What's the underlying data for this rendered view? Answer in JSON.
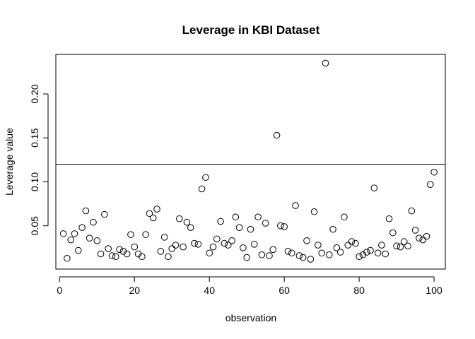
{
  "chart_data": {
    "type": "scatter",
    "title": "Leverage in KBI Dataset",
    "xlabel": "observation",
    "ylabel": "Leverage value",
    "xlim": [
      -1,
      103
    ],
    "ylim": [
      0.00075,
      0.245
    ],
    "x_ticks": [
      0,
      20,
      40,
      60,
      80,
      100
    ],
    "x_tick_labels": [
      "0",
      "20",
      "40",
      "60",
      "80",
      "100"
    ],
    "y_ticks": [
      0.05,
      0.1,
      0.15,
      0.2
    ],
    "y_tick_labels": [
      "0.05",
      "0.10",
      "0.15",
      "0.20"
    ],
    "grid": false,
    "reference_line": {
      "orientation": "horizontal",
      "y": 0.12
    },
    "x": [
      1,
      2,
      3,
      4,
      5,
      6,
      7,
      8,
      9,
      10,
      11,
      12,
      13,
      14,
      15,
      16,
      17,
      18,
      19,
      20,
      21,
      22,
      23,
      24,
      25,
      26,
      27,
      28,
      29,
      30,
      31,
      32,
      33,
      34,
      35,
      36,
      37,
      38,
      39,
      40,
      41,
      42,
      43,
      44,
      45,
      46,
      47,
      48,
      49,
      50,
      51,
      52,
      53,
      54,
      55,
      56,
      57,
      58,
      59,
      60,
      61,
      62,
      63,
      64,
      65,
      66,
      67,
      68,
      69,
      70,
      71,
      72,
      73,
      74,
      75,
      76,
      77,
      78,
      79,
      80,
      81,
      82,
      83,
      84,
      85,
      86,
      87,
      88,
      89,
      90,
      91,
      92,
      93,
      94,
      95,
      96,
      97,
      98,
      99,
      100
    ],
    "y": [
      0.041,
      0.013,
      0.034,
      0.041,
      0.022,
      0.048,
      0.067,
      0.036,
      0.054,
      0.033,
      0.018,
      0.063,
      0.024,
      0.016,
      0.015,
      0.023,
      0.021,
      0.018,
      0.04,
      0.026,
      0.018,
      0.015,
      0.04,
      0.064,
      0.059,
      0.069,
      0.021,
      0.037,
      0.015,
      0.024,
      0.028,
      0.058,
      0.026,
      0.054,
      0.048,
      0.03,
      0.029,
      0.092,
      0.105,
      0.019,
      0.026,
      0.035,
      0.055,
      0.03,
      0.028,
      0.033,
      0.06,
      0.048,
      0.025,
      0.014,
      0.046,
      0.029,
      0.06,
      0.017,
      0.053,
      0.016,
      0.023,
      0.153,
      0.05,
      0.049,
      0.021,
      0.019,
      0.073,
      0.016,
      0.014,
      0.033,
      0.012,
      0.066,
      0.028,
      0.019,
      0.235,
      0.017,
      0.046,
      0.025,
      0.02,
      0.06,
      0.028,
      0.032,
      0.03,
      0.015,
      0.017,
      0.02,
      0.022,
      0.093,
      0.019,
      0.028,
      0.018,
      0.058,
      0.042,
      0.027,
      0.026,
      0.032,
      0.027,
      0.067,
      0.045,
      0.036,
      0.034,
      0.038,
      0.097,
      0.111
    ]
  }
}
